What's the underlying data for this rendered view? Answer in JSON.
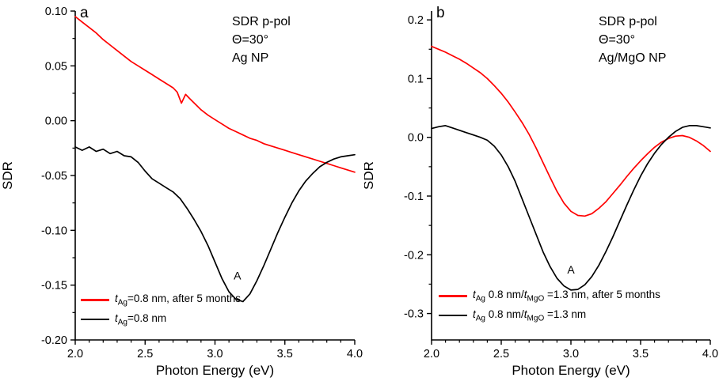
{
  "chart_data": [
    {
      "type": "line",
      "panel_label": "a",
      "title_lines": [
        "SDR p-pol",
        "Θ=30°",
        "Ag NP"
      ],
      "xlabel": "Photon Energy (eV)",
      "ylabel": "SDR",
      "xlim": [
        2.0,
        4.0
      ],
      "ylim": [
        -0.2,
        0.1
      ],
      "xticks": [
        2.0,
        2.5,
        3.0,
        3.5,
        4.0
      ],
      "xtick_labels": [
        "2.0",
        "2.5",
        "3.0",
        "3.5",
        "4.0"
      ],
      "yticks": [
        0.1,
        0.05,
        0.0,
        -0.05,
        -0.1,
        -0.15,
        -0.2
      ],
      "ytick_labels": [
        "0.10",
        "0.05",
        "0.00",
        "-0.05",
        "-0.10",
        "-0.15",
        "-0.20"
      ],
      "grid": false,
      "legend_position": "bottom-left",
      "annotation": {
        "text": "A",
        "x": 3.16,
        "y": -0.145
      },
      "series": [
        {
          "name": "t_Ag=0.8 nm, after 5 months",
          "color": "#ff0000",
          "label_segments": [
            {
              "t": "t",
              "i": true
            },
            {
              "t": "Ag",
              "sub": true
            },
            {
              "t": "=0.8 nm, after 5 months"
            }
          ],
          "x": [
            2.0,
            2.05,
            2.1,
            2.15,
            2.2,
            2.25,
            2.3,
            2.35,
            2.4,
            2.45,
            2.5,
            2.55,
            2.6,
            2.65,
            2.7,
            2.73,
            2.76,
            2.79,
            2.82,
            2.86,
            2.9,
            2.95,
            3.0,
            3.05,
            3.1,
            3.15,
            3.2,
            3.25,
            3.3,
            3.35,
            3.4,
            3.45,
            3.5,
            3.55,
            3.6,
            3.65,
            3.7,
            3.75,
            3.8,
            3.85,
            3.9,
            3.95,
            4.0
          ],
          "y": [
            0.095,
            0.09,
            0.085,
            0.08,
            0.074,
            0.069,
            0.064,
            0.059,
            0.054,
            0.05,
            0.046,
            0.042,
            0.038,
            0.034,
            0.03,
            0.026,
            0.016,
            0.024,
            0.02,
            0.015,
            0.01,
            0.005,
            0.001,
            -0.003,
            -0.007,
            -0.01,
            -0.013,
            -0.016,
            -0.018,
            -0.021,
            -0.023,
            -0.025,
            -0.027,
            -0.029,
            -0.031,
            -0.033,
            -0.035,
            -0.037,
            -0.039,
            -0.041,
            -0.043,
            -0.045,
            -0.047
          ]
        },
        {
          "name": "t_Ag=0.8 nm",
          "color": "#000000",
          "label_segments": [
            {
              "t": "t",
              "i": true
            },
            {
              "t": "Ag",
              "sub": true
            },
            {
              "t": "=0.8 nm"
            }
          ],
          "x": [
            2.0,
            2.05,
            2.1,
            2.15,
            2.2,
            2.25,
            2.3,
            2.35,
            2.4,
            2.45,
            2.5,
            2.55,
            2.6,
            2.65,
            2.7,
            2.75,
            2.8,
            2.85,
            2.9,
            2.95,
            3.0,
            3.05,
            3.1,
            3.15,
            3.2,
            3.25,
            3.3,
            3.35,
            3.4,
            3.45,
            3.5,
            3.55,
            3.6,
            3.65,
            3.7,
            3.75,
            3.8,
            3.85,
            3.9,
            3.95,
            4.0
          ],
          "y": [
            -0.024,
            -0.027,
            -0.024,
            -0.028,
            -0.026,
            -0.03,
            -0.028,
            -0.032,
            -0.033,
            -0.038,
            -0.046,
            -0.053,
            -0.057,
            -0.061,
            -0.065,
            -0.071,
            -0.08,
            -0.09,
            -0.101,
            -0.114,
            -0.129,
            -0.144,
            -0.156,
            -0.163,
            -0.165,
            -0.158,
            -0.146,
            -0.132,
            -0.117,
            -0.102,
            -0.088,
            -0.075,
            -0.064,
            -0.055,
            -0.048,
            -0.042,
            -0.038,
            -0.035,
            -0.033,
            -0.032,
            -0.031
          ]
        }
      ]
    },
    {
      "type": "line",
      "panel_label": "b",
      "title_lines": [
        "SDR p-pol",
        "Θ=30°",
        "Ag/MgO NP"
      ],
      "xlabel": "Photon Energy (eV)",
      "ylabel": "SDR",
      "xlim": [
        2.0,
        4.0
      ],
      "ylim": [
        -0.345,
        0.215
      ],
      "xticks": [
        2.0,
        2.5,
        3.0,
        3.5,
        4.0
      ],
      "xtick_labels": [
        "2.0",
        "2.5",
        "3.0",
        "3.5",
        "4.0"
      ],
      "yticks": [
        0.2,
        0.1,
        0.0,
        -0.1,
        -0.2,
        -0.3
      ],
      "ytick_labels": [
        "0.2",
        "0.1",
        "0.0",
        "-0.1",
        "-0.2",
        "-0.3"
      ],
      "grid": false,
      "legend_position": "bottom-left",
      "annotation": {
        "text": "A",
        "x": 3.0,
        "y": -0.232
      },
      "series": [
        {
          "name": "t_Ag 0.8 nm/t_MgO =1.3 nm, after 5 months",
          "color": "#ff0000",
          "label_segments": [
            {
              "t": "t",
              "i": true
            },
            {
              "t": "Ag",
              "sub": true
            },
            {
              "t": " 0.8 nm/"
            },
            {
              "t": "t",
              "i": true
            },
            {
              "t": "MgO",
              "sub": true
            },
            {
              "t": " =1.3 nm, after 5 months"
            }
          ],
          "x": [
            2.0,
            2.05,
            2.1,
            2.15,
            2.2,
            2.25,
            2.3,
            2.35,
            2.4,
            2.45,
            2.5,
            2.55,
            2.6,
            2.65,
            2.7,
            2.75,
            2.8,
            2.85,
            2.9,
            2.95,
            3.0,
            3.05,
            3.1,
            3.15,
            3.2,
            3.25,
            3.3,
            3.35,
            3.4,
            3.45,
            3.5,
            3.55,
            3.6,
            3.65,
            3.7,
            3.75,
            3.8,
            3.85,
            3.9,
            3.95,
            4.0
          ],
          "y": [
            0.155,
            0.15,
            0.145,
            0.139,
            0.133,
            0.126,
            0.118,
            0.11,
            0.1,
            0.088,
            0.075,
            0.06,
            0.043,
            0.025,
            0.005,
            -0.018,
            -0.043,
            -0.068,
            -0.092,
            -0.112,
            -0.126,
            -0.133,
            -0.134,
            -0.13,
            -0.121,
            -0.11,
            -0.096,
            -0.082,
            -0.067,
            -0.053,
            -0.04,
            -0.028,
            -0.017,
            -0.008,
            -0.002,
            0.002,
            0.003,
            0.0,
            -0.006,
            -0.014,
            -0.024
          ]
        },
        {
          "name": "t_Ag 0.8 nm/t_MgO =1.3 nm",
          "color": "#000000",
          "label_segments": [
            {
              "t": "t",
              "i": true
            },
            {
              "t": "Ag",
              "sub": true
            },
            {
              "t": " 0.8 nm/"
            },
            {
              "t": "t",
              "i": true
            },
            {
              "t": "MgO",
              "sub": true
            },
            {
              "t": " =1.3 nm"
            }
          ],
          "x": [
            2.0,
            2.05,
            2.1,
            2.15,
            2.2,
            2.25,
            2.3,
            2.35,
            2.4,
            2.45,
            2.5,
            2.55,
            2.6,
            2.65,
            2.7,
            2.75,
            2.8,
            2.85,
            2.9,
            2.95,
            3.0,
            3.05,
            3.1,
            3.15,
            3.2,
            3.25,
            3.3,
            3.35,
            3.4,
            3.45,
            3.5,
            3.55,
            3.6,
            3.65,
            3.7,
            3.75,
            3.8,
            3.85,
            3.9,
            3.95,
            4.0
          ],
          "y": [
            0.015,
            0.018,
            0.02,
            0.016,
            0.012,
            0.008,
            0.004,
            0.0,
            -0.005,
            -0.015,
            -0.03,
            -0.05,
            -0.075,
            -0.105,
            -0.135,
            -0.165,
            -0.195,
            -0.22,
            -0.24,
            -0.253,
            -0.26,
            -0.259,
            -0.251,
            -0.237,
            -0.218,
            -0.195,
            -0.17,
            -0.143,
            -0.116,
            -0.09,
            -0.066,
            -0.045,
            -0.027,
            -0.012,
            0.0,
            0.01,
            0.017,
            0.02,
            0.02,
            0.018,
            0.016
          ]
        }
      ]
    }
  ]
}
